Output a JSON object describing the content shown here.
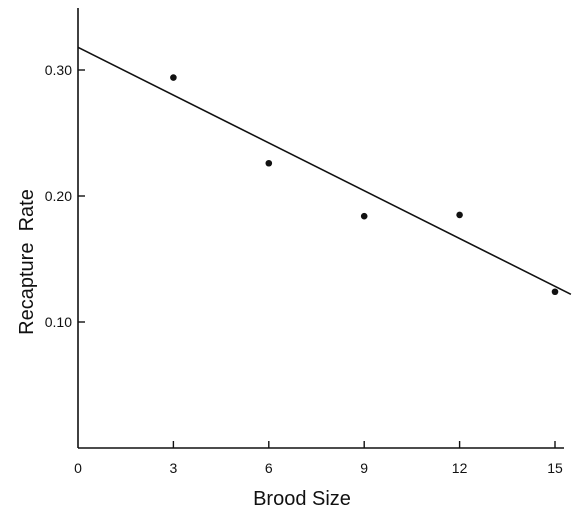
{
  "chart_data": {
    "type": "scatter",
    "xlabel": "Brood Size",
    "ylabel": "Recapture  Rate",
    "xlim": [
      0,
      15.5
    ],
    "ylim": [
      0,
      0.355
    ],
    "x_ticks": [
      0,
      3,
      6,
      9,
      12,
      15
    ],
    "x_tick_labels": [
      "0",
      "3",
      "6",
      "9",
      "12",
      "15"
    ],
    "y_ticks": [
      0.1,
      0.2,
      0.3
    ],
    "y_tick_labels": [
      "0.10",
      "0.20",
      "0.30"
    ],
    "points": [
      {
        "x": 3,
        "y": 0.294
      },
      {
        "x": 6,
        "y": 0.226
      },
      {
        "x": 9,
        "y": 0.184
      },
      {
        "x": 12,
        "y": 0.185
      },
      {
        "x": 15,
        "y": 0.124
      }
    ],
    "fit_line": {
      "x": [
        0,
        15.5
      ],
      "y": [
        0.318,
        0.122
      ]
    },
    "grid": false,
    "legend": "none"
  }
}
